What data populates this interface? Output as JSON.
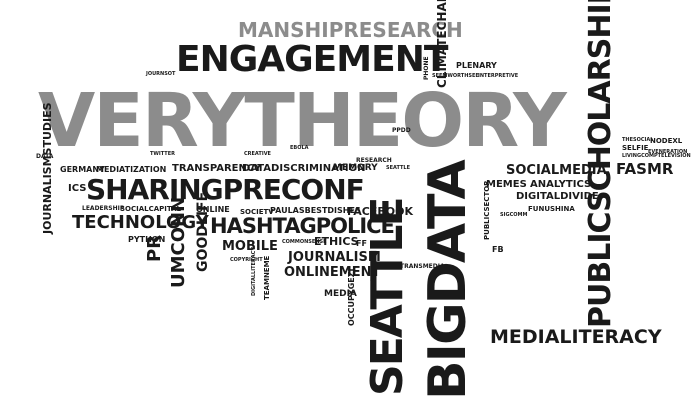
{
  "words": {
    "verytheory": "VERYTHEORY",
    "engagement": "ENGAGEMENT",
    "manship": "MANSHIPRESEARCH",
    "climatechange": "CLIMATECHANGE",
    "plenary": "PLENARY",
    "publicscholarship": "PUBLICSCHOLARSHIP",
    "sharingpreconf": "SHARINGPRECONF",
    "hashtagpolice": "HASHTAGPOLICE",
    "seattle": "SEATTLE",
    "bigdata": "BIGDATA",
    "technology": "TECHNOLOGY",
    "journalism": "JOURNALISM",
    "onlinement": "ONLINEMENT",
    "mobile": "MOBILE",
    "ethics": "ETHICS",
    "facebook": "FACEBOOK",
    "socialmedia": "SOCIALMEDIA",
    "digitaldivide": "DIGITALDIVIDE",
    "analytics": "ANALYTICS",
    "memes": "MEMES",
    "fasmr": "FASMR",
    "medialiteracy": "MEDIALITERACY",
    "datadiscrimination": "DATADISCRIMINATION",
    "memory": "MEMORY",
    "transparency": "TRANSPARENCY",
    "mediatization": "MEDIATIZATION",
    "umconn": "UMCONN",
    "goodlife": "GOODLIFE",
    "pr": "PR",
    "journalismstudies": "JOURNALISMSTUDIES",
    "germany": "GERMANY",
    "ics": "ICS",
    "socialcapital": "SOCIALCAPITAL",
    "python": "PYTHON",
    "leadership": "LEADERSHIP",
    "online": "ONLINE",
    "societv": "SOCIETV",
    "paulasbestdishes": "PAULASBESTDISHES",
    "media": "MEDIA",
    "occupygezi": "OCCUPYGEZI",
    "teamnews": "TEAMNEME",
    "publicsector": "PUBLICSECTOR",
    "ff": "FF",
    "transmedia": "TRANSMEDIA",
    "funushina": "FUNUSHINA",
    "selfie": "SELFIE",
    "nodexl": "NODEXL",
    "ppdd": "PPDD",
    "research": "RESEARCH",
    "seattle_small": "SEATTLE",
    "data": "DATA",
    "twitter": "TWITTER",
    "fb": "FB",
    "livingcomptelev": "LIVINGCOMPTELEVISION",
    "sigcomm": "SIGCOMM",
    "eveneration": "EVENERATION",
    "journ": "JOURNSOT",
    "copyright": "COPYRIGHT",
    "digitalliteracy": "DIGITALLITERACY",
    "commonsense": "COMMONSENSE",
    "research_small": "RESEARCH",
    "ebola": "EBOLA",
    "creative": "CREATIVE",
    "thesocial": "THESOCIAL",
    "phone": "PHONE",
    "seemsworthsee": "SEEMWORTHSEE",
    "interpretive": "INTERPRETIVE"
  }
}
